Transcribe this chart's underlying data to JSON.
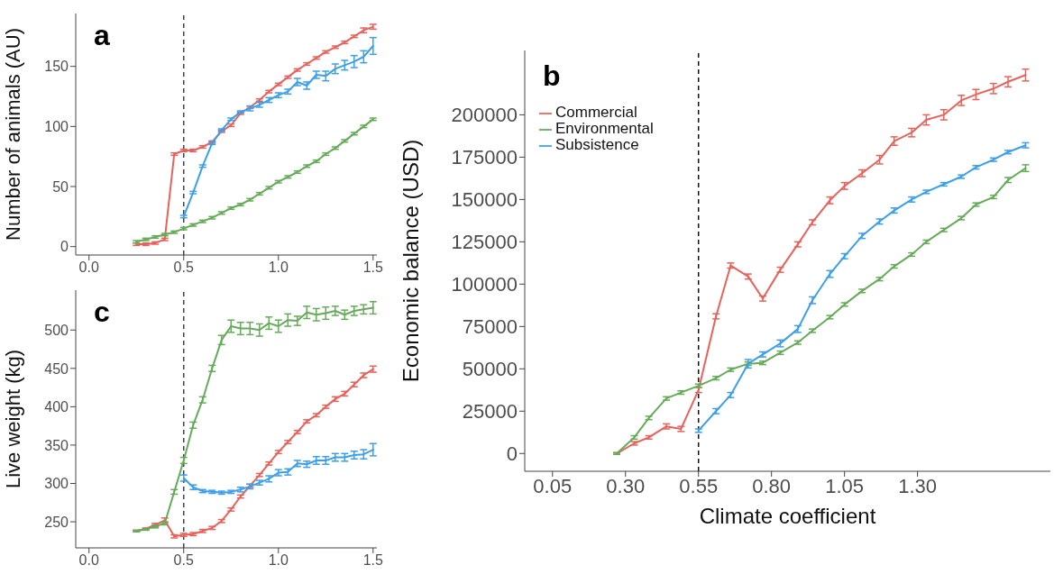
{
  "chart_data": [
    {
      "type": "line",
      "title": "a",
      "ylabel": "Number of animals (AU)",
      "x": [
        0.25,
        0.3,
        0.35,
        0.4,
        0.45,
        0.5,
        0.55,
        0.6,
        0.65,
        0.7,
        0.75,
        0.8,
        0.85,
        0.9,
        0.95,
        1.0,
        1.05,
        1.1,
        1.15,
        1.2,
        1.25,
        1.3,
        1.35,
        1.4,
        1.45,
        1.5
      ],
      "series": [
        {
          "color": "#e8625c",
          "values": [
            2,
            2,
            3,
            6,
            77,
            80,
            80,
            83,
            87,
            96,
            101,
            111,
            116,
            122,
            129,
            135,
            141,
            147,
            152,
            157,
            162,
            166,
            170,
            175,
            180,
            183
          ],
          "errors": [
            1,
            1,
            1,
            1,
            1,
            1,
            1,
            1,
            1,
            1,
            1,
            1,
            1,
            1,
            1,
            1,
            1,
            1,
            1,
            1,
            1,
            1,
            1,
            1,
            2,
            2
          ]
        },
        {
          "color": "#3d9fe8",
          "values": [
            null,
            null,
            null,
            null,
            null,
            25,
            45,
            67,
            86,
            97,
            106,
            112,
            115,
            118,
            122,
            126,
            129,
            137,
            134,
            143,
            142,
            148,
            151,
            154,
            158,
            167
          ],
          "errors": [
            null,
            null,
            null,
            null,
            null,
            1,
            1,
            1,
            1,
            1,
            1,
            1,
            2,
            2,
            2,
            2,
            2,
            3,
            3,
            3,
            4,
            4,
            4,
            5,
            5,
            7
          ]
        },
        {
          "color": "#66ab5a",
          "values": [
            4,
            6,
            8,
            10,
            12,
            15,
            18,
            21,
            24,
            28,
            32,
            35,
            39,
            44,
            49,
            54,
            58,
            62,
            67,
            71,
            77,
            82,
            88,
            94,
            100,
            106
          ],
          "errors": [
            1,
            1,
            1,
            1,
            1,
            1,
            1,
            1,
            1,
            1,
            1,
            1,
            1,
            1,
            1,
            1,
            1,
            1,
            1,
            1,
            1,
            1,
            1,
            1,
            1,
            1
          ]
        }
      ],
      "xlim": [
        -0.07,
        1.52
      ],
      "xticks": [
        {
          "value": 0,
          "label": "0.0"
        },
        {
          "value": 0.5,
          "label": "0.5"
        },
        {
          "value": 1,
          "label": "1.0"
        },
        {
          "value": 1.5,
          "label": "1.5"
        }
      ],
      "ylim": [
        -7,
        194
      ],
      "yticks": [
        0,
        50,
        100,
        150
      ],
      "ref_lines": [
        {
          "axis": "x",
          "value": 0.5,
          "color": "#404040",
          "line_style": "dashed"
        }
      ],
      "grid": false,
      "legend": false,
      "marker": "none",
      "line_style": "solid"
    },
    {
      "type": "line",
      "title": "b",
      "xlabel": "Climate coefficient",
      "ylabel": "Economic balance (USD)",
      "x": [
        0.27,
        0.33,
        0.38,
        0.44,
        0.49,
        0.55,
        0.61,
        0.66,
        0.72,
        0.77,
        0.83,
        0.89,
        0.94,
        1.0,
        1.05,
        1.11,
        1.17,
        1.22,
        1.28,
        1.33,
        1.39,
        1.45,
        1.5,
        1.56,
        1.61,
        1.67
      ],
      "series": [
        {
          "name": "Commercial",
          "color": "#e8625c",
          "values": [
            0,
            6000,
            9500,
            16000,
            14500,
            37500,
            81000,
            111000,
            104500,
            91500,
            108500,
            123500,
            136500,
            149500,
            158000,
            165500,
            173500,
            184500,
            189500,
            197000,
            200000,
            208500,
            212000,
            215500,
            219500,
            223500
          ],
          "errors": [
            500,
            1000,
            1000,
            1500,
            1500,
            1500,
            1500,
            1500,
            1500,
            1500,
            1500,
            1500,
            1500,
            2000,
            2000,
            2000,
            2500,
            2500,
            2500,
            3000,
            3000,
            3000,
            3000,
            3000,
            3000,
            3500
          ]
        },
        {
          "name": "Environmental",
          "color": "#66ab5a",
          "values": [
            0,
            9500,
            21000,
            32500,
            36000,
            40000,
            44500,
            49500,
            53000,
            53500,
            59500,
            65500,
            72500,
            80500,
            88000,
            96000,
            103000,
            110500,
            117500,
            125000,
            132000,
            139000,
            147000,
            151500,
            161500,
            168500
          ],
          "errors": [
            500,
            1000,
            1000,
            1000,
            1000,
            1000,
            1000,
            1000,
            1000,
            1000,
            1000,
            1000,
            1000,
            1000,
            1000,
            1000,
            1000,
            1000,
            1000,
            1000,
            1000,
            1000,
            1000,
            1000,
            1500,
            2000
          ]
        },
        {
          "name": "Subsistence",
          "color": "#3d9fe8",
          "values": [
            null,
            null,
            null,
            null,
            null,
            13500,
            25000,
            34500,
            53000,
            58500,
            65000,
            73500,
            90500,
            106000,
            116500,
            128500,
            137000,
            143500,
            150000,
            154500,
            159000,
            163500,
            169000,
            173500,
            178000,
            182000
          ],
          "errors": [
            null,
            null,
            null,
            null,
            null,
            1000,
            1500,
            1500,
            2500,
            1500,
            2000,
            2000,
            2000,
            2000,
            1500,
            1500,
            1500,
            1500,
            1500,
            1000,
            1000,
            1000,
            1000,
            1000,
            1000,
            1500
          ]
        }
      ],
      "xlim": [
        -0.045,
        1.755
      ],
      "xticks": [
        {
          "value": 0.05,
          "label": "0.05"
        },
        {
          "value": 0.3,
          "label": "0.30"
        },
        {
          "value": 0.55,
          "label": "0.55"
        },
        {
          "value": 0.8,
          "label": "0.80"
        },
        {
          "value": 1.05,
          "label": "1.05"
        },
        {
          "value": 1.3,
          "label": "1.30"
        }
      ],
      "ylim": [
        -10500,
        238000
      ],
      "yticks": [
        0,
        25000,
        50000,
        75000,
        100000,
        125000,
        150000,
        175000,
        200000
      ],
      "ref_lines": [
        {
          "axis": "x",
          "value": 0.55,
          "color": "#111111",
          "line_style": "dashed"
        }
      ],
      "grid": false,
      "legend": "top left",
      "marker": "none",
      "line_style": "solid"
    },
    {
      "type": "line",
      "title": "c",
      "ylabel": "Live weight (kg)",
      "x": [
        0.25,
        0.3,
        0.35,
        0.4,
        0.45,
        0.5,
        0.55,
        0.6,
        0.65,
        0.7,
        0.75,
        0.8,
        0.85,
        0.9,
        0.95,
        1.0,
        1.05,
        1.1,
        1.15,
        1.2,
        1.25,
        1.3,
        1.35,
        1.4,
        1.45,
        1.5
      ],
      "series": [
        {
          "color": "#e8625c",
          "values": [
            238,
            241,
            246,
            252,
            231,
            233,
            234,
            238,
            242,
            251,
            266,
            283,
            297,
            311,
            326,
            341,
            354,
            367,
            381,
            389,
            400,
            410,
            417,
            429,
            441,
            449
          ],
          "errors": [
            1,
            1,
            2,
            3,
            2,
            2,
            2,
            2,
            2,
            2,
            2,
            2,
            2,
            2,
            2,
            2,
            2,
            2,
            2,
            2,
            2,
            3,
            3,
            3,
            3,
            4
          ]
        },
        {
          "color": "#66ab5a",
          "values": [
            238,
            240,
            244,
            248,
            289,
            330,
            376,
            409,
            450,
            487,
            505,
            502,
            502,
            500,
            509,
            505,
            513,
            512,
            523,
            520,
            522,
            525,
            520,
            525,
            527,
            529
          ],
          "errors": [
            1,
            1,
            2,
            2,
            3,
            4,
            4,
            4,
            4,
            6,
            8,
            8,
            8,
            8,
            8,
            8,
            8,
            6,
            8,
            8,
            8,
            6,
            6,
            6,
            6,
            8
          ]
        },
        {
          "color": "#3d9fe8",
          "values": [
            null,
            null,
            null,
            null,
            null,
            307,
            295,
            290,
            289,
            288,
            289,
            292,
            296,
            301,
            306,
            314,
            315,
            326,
            325,
            330,
            330,
            334,
            334,
            337,
            338,
            344
          ],
          "errors": [
            null,
            null,
            null,
            null,
            null,
            4,
            3,
            2,
            2,
            2,
            2,
            3,
            3,
            3,
            4,
            4,
            4,
            4,
            4,
            5,
            5,
            5,
            5,
            5,
            6,
            8
          ]
        }
      ],
      "xlim": [
        -0.07,
        1.52
      ],
      "xticks": [
        {
          "value": 0,
          "label": "0.0"
        },
        {
          "value": 0.5,
          "label": "0.5"
        },
        {
          "value": 1,
          "label": "1.0"
        },
        {
          "value": 1.5,
          "label": "1.5"
        }
      ],
      "ylim": [
        216,
        552
      ],
      "yticks": [
        250,
        300,
        350,
        400,
        450,
        500
      ],
      "ref_lines": [
        {
          "axis": "x",
          "value": 0.5,
          "color": "#404040",
          "line_style": "dashed"
        }
      ],
      "grid": false,
      "legend": false,
      "marker": "none",
      "line_style": "solid"
    }
  ]
}
